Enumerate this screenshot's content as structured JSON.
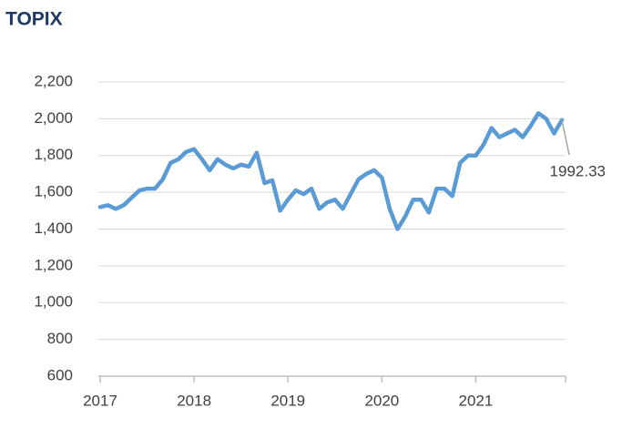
{
  "chart_data": {
    "type": "line",
    "title": "TOPIX",
    "categories": [
      "2017",
      null,
      null,
      null,
      null,
      null,
      null,
      null,
      null,
      null,
      null,
      null,
      "2018",
      null,
      null,
      null,
      null,
      null,
      null,
      null,
      null,
      null,
      null,
      null,
      "2019",
      null,
      null,
      null,
      null,
      null,
      null,
      null,
      null,
      null,
      null,
      null,
      "2020",
      null,
      null,
      null,
      null,
      null,
      null,
      null,
      null,
      null,
      null,
      null,
      "2021",
      null,
      null,
      null,
      null,
      null,
      null,
      null,
      null,
      null,
      null,
      null
    ],
    "series": [
      {
        "name": "TOPIX",
        "color": "#5b9bd5",
        "values": [
          1520,
          1530,
          1510,
          1530,
          1570,
          1610,
          1620,
          1620,
          1670,
          1760,
          1780,
          1820,
          1835,
          1780,
          1720,
          1780,
          1750,
          1730,
          1750,
          1740,
          1815,
          1650,
          1665,
          1500,
          1560,
          1610,
          1590,
          1620,
          1510,
          1545,
          1560,
          1510,
          1590,
          1670,
          1700,
          1720,
          1680,
          1510,
          1400,
          1470,
          1560,
          1560,
          1490,
          1620,
          1620,
          1580,
          1760,
          1800,
          1800,
          1860,
          1950,
          1900,
          1920,
          1940,
          1900,
          1960,
          2030,
          2000,
          1920,
          1992.33
        ]
      }
    ],
    "ylim": [
      600,
      2200
    ],
    "yticks": [
      600,
      800,
      {
        "value": 1000,
        "label": "1,000"
      },
      {
        "value": 1200,
        "label": "1,200"
      },
      {
        "value": 1400,
        "label": "1,400"
      },
      {
        "value": 1600,
        "label": "1,600"
      },
      {
        "value": 1800,
        "label": "1,800"
      },
      {
        "value": 2000,
        "label": "2,000"
      },
      {
        "value": 2200,
        "label": "2,200"
      }
    ],
    "grid": true
  }
}
